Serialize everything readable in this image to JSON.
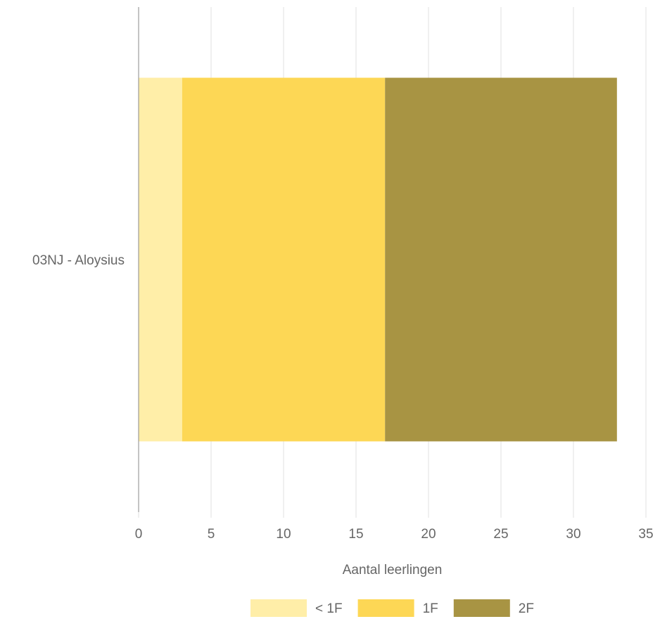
{
  "chart_data": {
    "type": "bar",
    "orientation": "horizontal",
    "stacked": true,
    "categories": [
      "03NJ - Aloysius"
    ],
    "series": [
      {
        "name": "< 1F",
        "values": [
          3
        ],
        "color": "#FFEEA8"
      },
      {
        "name": "1F",
        "values": [
          14
        ],
        "color": "#FDD755"
      },
      {
        "name": "2F",
        "values": [
          16
        ],
        "color": "#A89443"
      }
    ],
    "xlabel": "Aantal leerlingen",
    "ylabel": "",
    "xlim": [
      0,
      35
    ],
    "xticks": [
      "0",
      "5",
      "10",
      "15",
      "20",
      "25",
      "30",
      "35"
    ],
    "grid": true,
    "legend": "bottom"
  }
}
